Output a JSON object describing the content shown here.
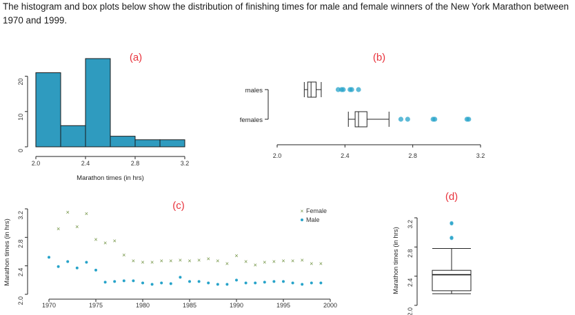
{
  "question": "The histogram and box plots below show the distribution of finishing times for male and female winners of the New York Marathon between 1970 and 1999.",
  "colors": {
    "bar": "#2f9bbf",
    "female": "#6b8e3a",
    "male": "#27a3c9",
    "label": "#e8323c"
  },
  "chart_data": [
    {
      "panel": "(a)",
      "type": "bar",
      "bins": [
        [
          2.0,
          2.2
        ],
        [
          2.2,
          2.4
        ],
        [
          2.4,
          2.6
        ],
        [
          2.6,
          2.8
        ],
        [
          2.8,
          3.0
        ],
        [
          3.0,
          3.2
        ]
      ],
      "values": [
        21,
        6,
        25,
        3,
        2,
        2
      ],
      "xlabel": "Marathon times (in hrs)",
      "xticks": [
        "2.0",
        "2.4",
        "2.8",
        "3.2"
      ],
      "yticks": [
        "0",
        "10",
        "20"
      ],
      "xlim": [
        2.0,
        3.2
      ],
      "ylim": [
        0,
        25
      ]
    },
    {
      "panel": "(b)",
      "type": "box",
      "series": [
        {
          "name": "males",
          "whisker_low": 2.16,
          "q1": 2.18,
          "median": 2.2,
          "q3": 2.23,
          "whisker_high": 2.26,
          "outliers": [
            2.36,
            2.38,
            2.39,
            2.43,
            2.44,
            2.48
          ]
        },
        {
          "name": "females",
          "whisker_low": 2.42,
          "q1": 2.46,
          "median": 2.48,
          "q3": 2.53,
          "whisker_high": 2.66,
          "outliers": [
            2.73,
            2.77,
            2.92,
            2.93,
            3.12,
            3.13
          ]
        }
      ],
      "xticks": [
        "2.0",
        "2.4",
        "2.8",
        "3.2"
      ],
      "xlim": [
        2.0,
        3.2
      ]
    },
    {
      "panel": "(c)",
      "type": "scatter",
      "ylabel": "Marathon times (in hrs)",
      "xticks": [
        "1970",
        "1975",
        "1980",
        "1985",
        "1990",
        "1995",
        "2000"
      ],
      "yticks": [
        "2.0",
        "2.4",
        "2.8",
        "3.2"
      ],
      "legend": [
        "Female",
        "Male"
      ],
      "legend_position": "top-right",
      "series": [
        {
          "name": "Female",
          "x": [
            1971,
            1972,
            1973,
            1974,
            1975,
            1976,
            1977,
            1978,
            1979,
            1980,
            1981,
            1982,
            1983,
            1984,
            1985,
            1986,
            1987,
            1988,
            1989,
            1990,
            1991,
            1992,
            1993,
            1994,
            1995,
            1996,
            1997,
            1998,
            1999
          ],
          "y": [
            2.92,
            3.15,
            2.95,
            3.13,
            2.77,
            2.72,
            2.75,
            2.55,
            2.47,
            2.45,
            2.45,
            2.47,
            2.47,
            2.48,
            2.47,
            2.48,
            2.5,
            2.47,
            2.43,
            2.54,
            2.46,
            2.41,
            2.45,
            2.46,
            2.47,
            2.47,
            2.48,
            2.43,
            2.43
          ]
        },
        {
          "name": "Male",
          "x": [
            1970,
            1971,
            1972,
            1973,
            1974,
            1975,
            1976,
            1977,
            1978,
            1979,
            1980,
            1981,
            1982,
            1983,
            1984,
            1985,
            1986,
            1987,
            1988,
            1989,
            1990,
            1991,
            1992,
            1993,
            1994,
            1995,
            1996,
            1997,
            1998,
            1999
          ],
          "y": [
            2.52,
            2.39,
            2.46,
            2.37,
            2.45,
            2.34,
            2.17,
            2.18,
            2.19,
            2.19,
            2.16,
            2.14,
            2.16,
            2.15,
            2.24,
            2.18,
            2.18,
            2.16,
            2.14,
            2.14,
            2.2,
            2.16,
            2.16,
            2.17,
            2.18,
            2.18,
            2.16,
            2.14,
            2.16,
            2.16
          ]
        }
      ]
    },
    {
      "panel": "(d)",
      "type": "box",
      "ylabel": "Marathon times (in hrs)",
      "yticks": [
        "2.0",
        "2.4",
        "2.8",
        "3.2"
      ],
      "whisker_low": 2.16,
      "q1": 2.2,
      "median": 2.42,
      "q3": 2.48,
      "whisker_high": 2.78,
      "outliers": [
        2.92,
        2.93,
        3.12,
        3.13
      ]
    }
  ]
}
